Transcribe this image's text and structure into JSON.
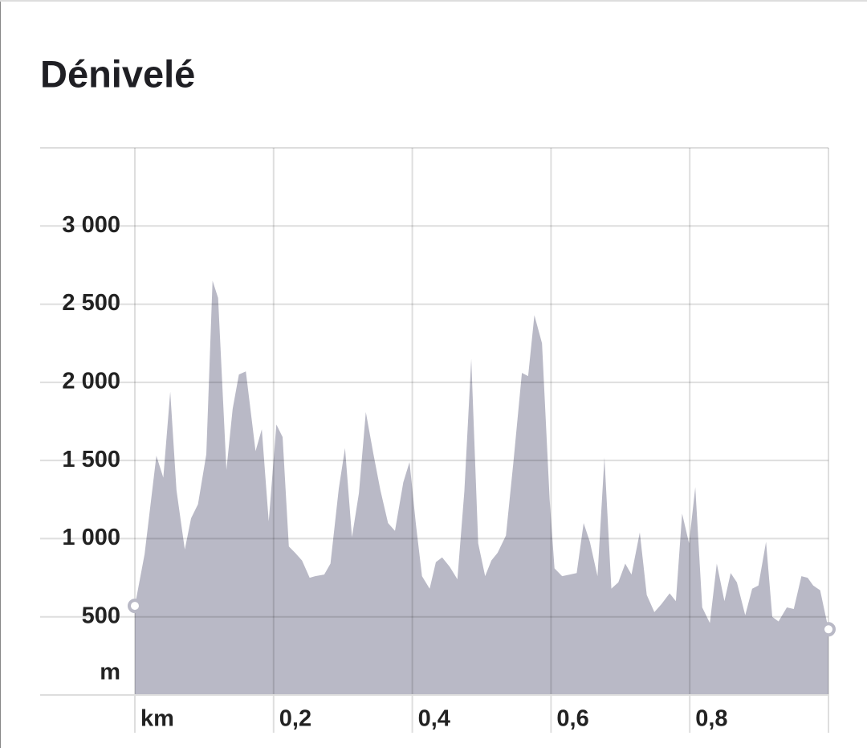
{
  "chart_data": {
    "type": "area",
    "title": "Dénivelé",
    "x_label": "km",
    "y_label": "m",
    "color": "#b9b9c6",
    "x": [
      0.0,
      0.014,
      0.031,
      0.041,
      0.051,
      0.06,
      0.072,
      0.081,
      0.091,
      0.103,
      0.112,
      0.12,
      0.132,
      0.141,
      0.15,
      0.16,
      0.174,
      0.183,
      0.193,
      0.204,
      0.213,
      0.222,
      0.231,
      0.241,
      0.252,
      0.26,
      0.273,
      0.282,
      0.294,
      0.303,
      0.313,
      0.323,
      0.333,
      0.344,
      0.354,
      0.365,
      0.375,
      0.387,
      0.396,
      0.405,
      0.414,
      0.425,
      0.434,
      0.443,
      0.454,
      0.465,
      0.475,
      0.485,
      0.495,
      0.505,
      0.514,
      0.523,
      0.535,
      0.546,
      0.558,
      0.567,
      0.576,
      0.587,
      0.598,
      0.605,
      0.616,
      0.627,
      0.637,
      0.647,
      0.656,
      0.667,
      0.677,
      0.687,
      0.697,
      0.707,
      0.716,
      0.728,
      0.738,
      0.749,
      0.759,
      0.771,
      0.78,
      0.789,
      0.799,
      0.808,
      0.818,
      0.829,
      0.839,
      0.85,
      0.859,
      0.868,
      0.88,
      0.89,
      0.899,
      0.91,
      0.919,
      0.928,
      0.94,
      0.95,
      0.961,
      0.97,
      0.978,
      0.988,
      1.0
    ],
    "values": [
      570,
      900,
      1530,
      1390,
      1940,
      1310,
      930,
      1130,
      1220,
      1540,
      2650,
      2540,
      1440,
      1830,
      2050,
      2070,
      1560,
      1700,
      1110,
      1730,
      1650,
      950,
      910,
      860,
      750,
      760,
      770,
      840,
      1320,
      1580,
      1010,
      1290,
      1810,
      1540,
      1310,
      1100,
      1050,
      1360,
      1490,
      1100,
      760,
      680,
      850,
      880,
      820,
      740,
      1300,
      2150,
      970,
      760,
      860,
      910,
      1020,
      1500,
      2060,
      2040,
      2430,
      2250,
      1250,
      810,
      760,
      770,
      780,
      1100,
      980,
      760,
      1520,
      680,
      720,
      840,
      770,
      1040,
      640,
      530,
      580,
      650,
      600,
      1160,
      970,
      1330,
      560,
      460,
      840,
      600,
      780,
      720,
      510,
      680,
      700,
      980,
      500,
      470,
      560,
      550,
      760,
      750,
      700,
      670,
      420
    ],
    "xlim": [
      0,
      1
    ],
    "ylim": [
      0,
      3500
    ],
    "xticks": [
      {
        "value": 0.2,
        "label": "0,2"
      },
      {
        "value": 0.4,
        "label": "0,4"
      },
      {
        "value": 0.6,
        "label": "0,6"
      },
      {
        "value": 0.8,
        "label": "0,8"
      }
    ],
    "yticks": [
      500,
      {
        "value": 1000,
        "label": "1 000"
      },
      {
        "value": 1500,
        "label": "1 500"
      },
      {
        "value": 2000,
        "label": "2 000"
      },
      {
        "value": 2500,
        "label": "2 500"
      },
      {
        "value": 3000,
        "label": "3 000"
      }
    ],
    "grid": true
  }
}
